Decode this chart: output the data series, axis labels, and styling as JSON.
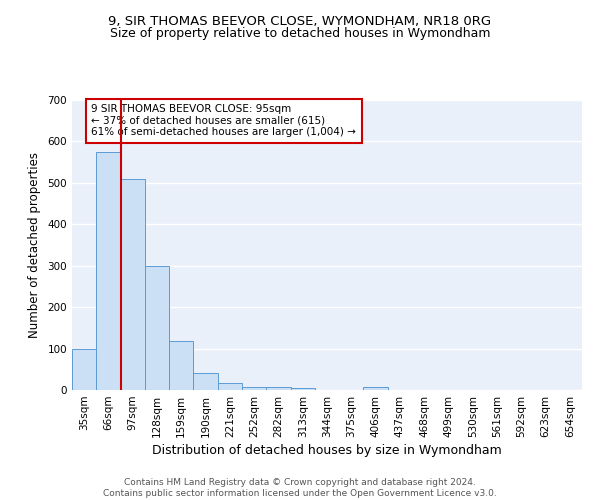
{
  "title": "9, SIR THOMAS BEEVOR CLOSE, WYMONDHAM, NR18 0RG",
  "subtitle": "Size of property relative to detached houses in Wymondham",
  "xlabel": "Distribution of detached houses by size in Wymondham",
  "ylabel": "Number of detached properties",
  "bin_labels": [
    "35sqm",
    "66sqm",
    "97sqm",
    "128sqm",
    "159sqm",
    "190sqm",
    "221sqm",
    "252sqm",
    "282sqm",
    "313sqm",
    "344sqm",
    "375sqm",
    "406sqm",
    "437sqm",
    "468sqm",
    "499sqm",
    "530sqm",
    "561sqm",
    "592sqm",
    "623sqm",
    "654sqm"
  ],
  "bar_values": [
    100,
    575,
    510,
    300,
    118,
    40,
    17,
    8,
    7,
    6,
    0,
    0,
    8,
    0,
    0,
    0,
    0,
    0,
    0,
    0,
    0
  ],
  "bar_color": "#cce0f5",
  "bar_edge_color": "#5b9bd5",
  "vline_x_index": 2,
  "vline_color": "#cc0000",
  "annotation_text": "9 SIR THOMAS BEEVOR CLOSE: 95sqm\n← 37% of detached houses are smaller (615)\n61% of semi-detached houses are larger (1,004) →",
  "annotation_box_color": "white",
  "annotation_box_edgecolor": "#cc0000",
  "ylim": [
    0,
    700
  ],
  "yticks": [
    0,
    100,
    200,
    300,
    400,
    500,
    600,
    700
  ],
  "background_color": "#eaf0fa",
  "grid_color": "white",
  "footer": "Contains HM Land Registry data © Crown copyright and database right 2024.\nContains public sector information licensed under the Open Government Licence v3.0.",
  "title_fontsize": 9.5,
  "subtitle_fontsize": 9,
  "xlabel_fontsize": 9,
  "ylabel_fontsize": 8.5,
  "tick_fontsize": 7.5,
  "footer_fontsize": 6.5
}
